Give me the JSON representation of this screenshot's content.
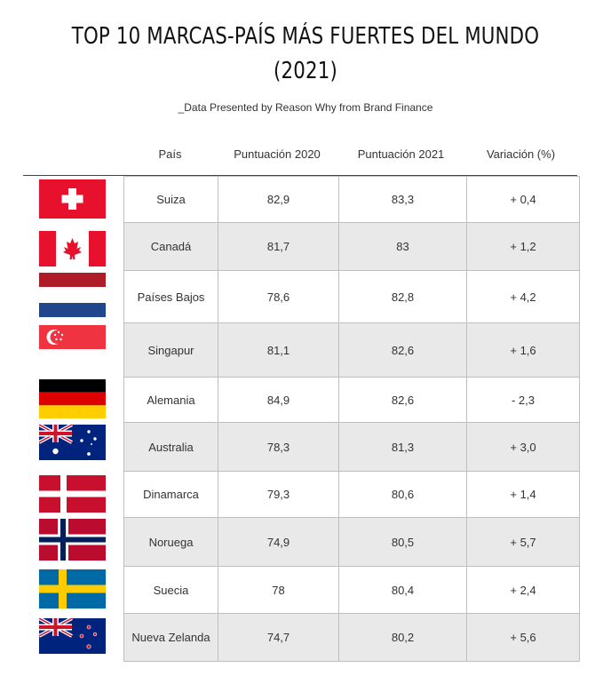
{
  "title_line1": "TOP 10 MARCAS-PAÍS MÁS FUERTES DEL MUNDO",
  "title_line2": "(2021)",
  "subtitle": "_Data Presented by Reason Why from Brand Finance",
  "colors": {
    "highlight": "#3ab0e0",
    "row_alt": "#e9e9e9",
    "border": "#bfbfbf"
  },
  "chart_data": {
    "type": "table",
    "title": "TOP 10 MARCAS-PAÍS MÁS FUERTES DEL MUNDO (2021)",
    "columns": [
      "País",
      "Puntuación 2020",
      "Puntuación 2021",
      "Variación (%)"
    ],
    "rows": [
      {
        "flag": "switzerland-flag",
        "pais": "Suiza",
        "p2020": "82,9",
        "p2021": "83,3",
        "variacion": "+ 0,4",
        "highlight_2021": true
      },
      {
        "flag": "canada-flag",
        "pais": "Canadá",
        "p2020": "81,7",
        "p2021": "83",
        "variacion": "+ 1,2"
      },
      {
        "flag": "netherlands-flag",
        "pais": "Países Bajos",
        "p2020": "78,6",
        "p2021": "82,8",
        "variacion": "+ 4,2"
      },
      {
        "flag": "singapore-flag",
        "pais": "Singapur",
        "p2020": "81,1",
        "p2021": "82,6",
        "variacion": "+ 1,6"
      },
      {
        "flag": "germany-flag",
        "pais": "Alemania",
        "p2020": "84,9",
        "p2021": "82,6",
        "variacion": "- 2,3"
      },
      {
        "flag": "australia-flag",
        "pais": "Australia",
        "p2020": "78,3",
        "p2021": "81,3",
        "variacion": "+ 3,0"
      },
      {
        "flag": "denmark-flag",
        "pais": "Dinamarca",
        "p2020": "79,3",
        "p2021": "80,6",
        "variacion": "+ 1,4"
      },
      {
        "flag": "norway-flag",
        "pais": "Noruega",
        "p2020": "74,9",
        "p2021": "80,5",
        "variacion": "+ 5,7",
        "highlight_var": true
      },
      {
        "flag": "sweden-flag",
        "pais": "Suecia",
        "p2020": "78",
        "p2021": "80,4",
        "variacion": "+ 2,4"
      },
      {
        "flag": "new-zealand-flag",
        "pais": "Nueva Zelanda",
        "p2020": "74,7",
        "p2021": "80,2",
        "variacion": "+ 5,6"
      }
    ]
  }
}
